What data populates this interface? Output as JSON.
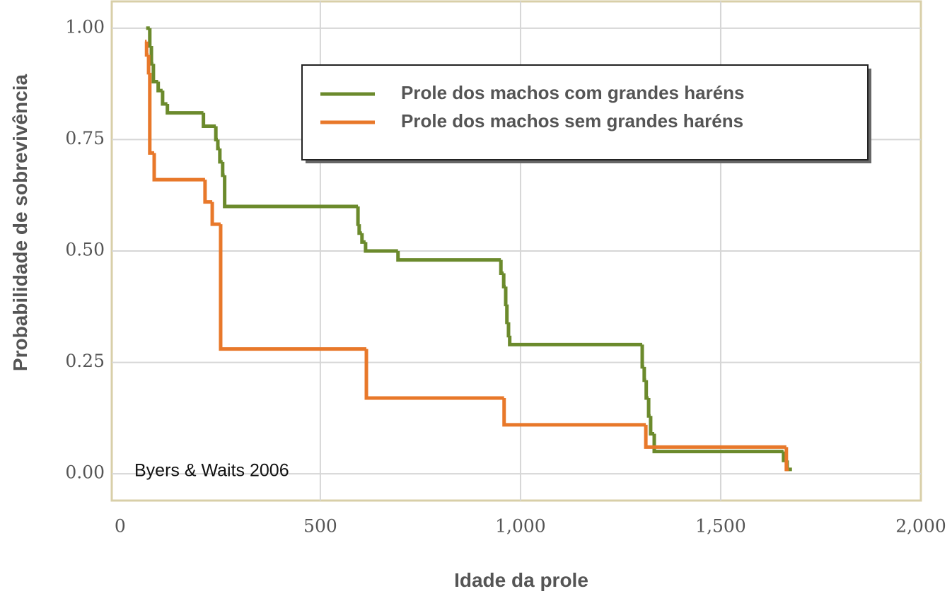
{
  "chart_data": {
    "type": "step",
    "xlabel": "Idade da prole",
    "ylabel": "Probabilidade de sobrevivência",
    "annotation": "Byers & Waits 2006",
    "xlim": [
      -21,
      2000
    ],
    "ylim": [
      -0.06,
      1.06
    ],
    "xticks": [
      0,
      500,
      {
        "value": 1000,
        "label": "1,000"
      },
      {
        "value": 1500,
        "label": "1,500"
      },
      {
        "value": 2000,
        "label": "2,000"
      }
    ],
    "yticks": [
      {
        "value": 0,
        "label": "0.00"
      },
      0.25,
      {
        "value": 0.5,
        "label": "0.50"
      },
      0.75,
      {
        "value": 1,
        "label": "1.00"
      }
    ],
    "grid": true,
    "series": [
      {
        "name": "Prole dos machos com grandes haréns",
        "color": "#6b8a2c",
        "x": [
          65,
          74,
          78,
          83,
          95,
          106,
          118,
          208,
          239,
          244,
          249,
          256,
          261,
          594,
          597,
          604,
          613,
          694,
          951,
          958,
          963,
          966,
          970,
          973,
          1304,
          1309,
          1314,
          1320,
          1325,
          1334,
          1657,
          1666,
          1678
        ],
        "values": [
          1.0,
          0.96,
          0.92,
          0.88,
          0.86,
          0.83,
          0.81,
          0.78,
          0.75,
          0.73,
          0.7,
          0.67,
          0.6,
          0.56,
          0.54,
          0.52,
          0.5,
          0.48,
          0.45,
          0.42,
          0.38,
          0.34,
          0.31,
          0.29,
          0.24,
          0.21,
          0.17,
          0.13,
          0.09,
          0.05,
          0.03,
          0.01,
          0.01
        ]
      },
      {
        "name": "Prole dos machos sem grandes haréns",
        "color": "#e8782a",
        "x": [
          62,
          66,
          71,
          74,
          85,
          212,
          230,
          251,
          615,
          959,
          1313,
          1664,
          1670
        ],
        "values": [
          0.97,
          0.94,
          0.9,
          0.72,
          0.66,
          0.61,
          0.56,
          0.28,
          0.17,
          0.11,
          0.06,
          0.01,
          0.01
        ]
      }
    ]
  }
}
